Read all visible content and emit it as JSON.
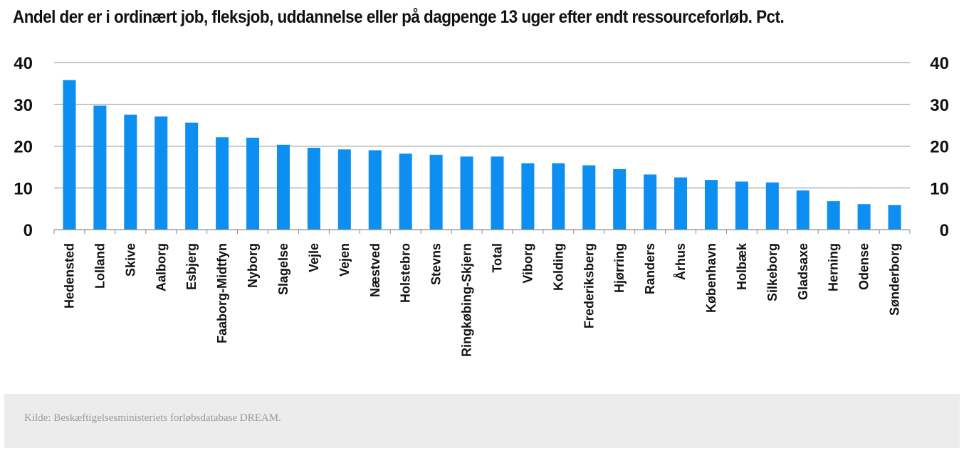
{
  "chart_data": {
    "type": "bar",
    "title": "Andel der er i ordinært job, fleksjob, uddannelse eller på dagpenge 13 uger efter endt ressourceforløb. Pct.",
    "categories": [
      "Hedensted",
      "Lolland",
      "Skive",
      "Aalborg",
      "Esbjerg",
      "Faaborg-Midtfyn",
      "Nyborg",
      "Slagelse",
      "Vejle",
      "Vejen",
      "Næstved",
      "Holstebro",
      "Stevns",
      "Ringkøbing-Skjern",
      "Total",
      "Viborg",
      "Kolding",
      "Frederiksberg",
      "Hjørring",
      "Randers",
      "Århus",
      "København",
      "Holbæk",
      "Silkeborg",
      "Gladsaxe",
      "Herning",
      "Odense",
      "Sønderborg"
    ],
    "values": [
      35.8,
      29.7,
      27.5,
      27.1,
      25.6,
      22.1,
      22.0,
      20.3,
      19.6,
      19.2,
      19.0,
      18.2,
      17.9,
      17.5,
      17.5,
      15.9,
      15.9,
      15.4,
      14.5,
      13.2,
      12.5,
      11.9,
      11.5,
      11.3,
      9.4,
      6.8,
      6.1,
      5.9
    ],
    "ylim": [
      0,
      40
    ],
    "yticks": [
      "0",
      "10",
      "20",
      "30",
      "40"
    ],
    "grid": true,
    "legend": "none",
    "bar_color": "#0d8ef1"
  },
  "source": "Kilde: Beskæftigelsesministeriets forløbsdatabase DREAM."
}
